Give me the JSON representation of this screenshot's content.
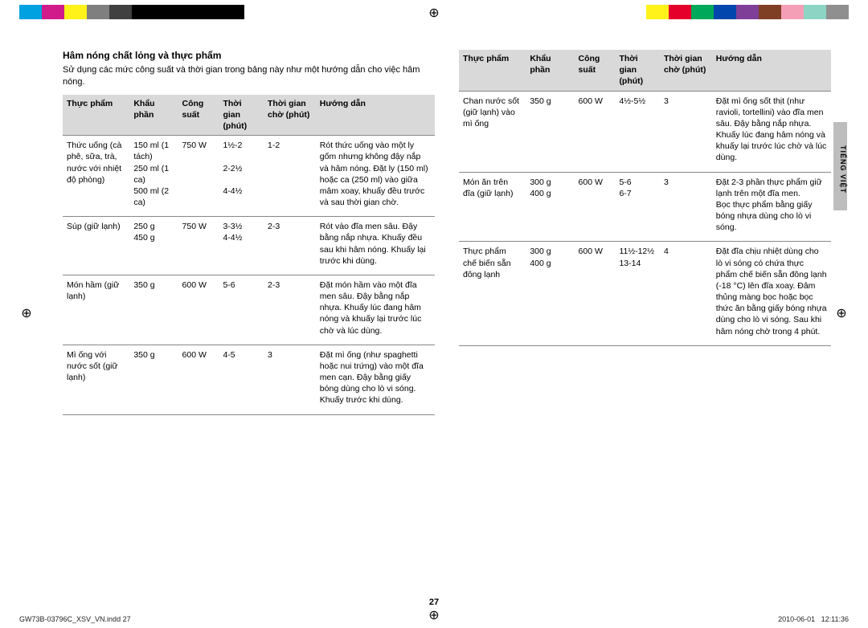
{
  "colorBar": {
    "left": [
      "#00a1e1",
      "#d11b8a",
      "#fff21a",
      "#7f7f7f",
      "#404040",
      "#000000",
      "#000000",
      "#000000",
      "#000000",
      "#000000"
    ],
    "right": [
      "#ffffff",
      "#fff21a",
      "#e4002b",
      "#00a859",
      "#0046ad",
      "#7f3f98",
      "#7f3f25",
      "#f59fb6",
      "#8ed4c5",
      "#8f8f8f"
    ]
  },
  "heading": "Hâm nóng chất lỏng và thực phẩm",
  "intro": "Sử dụng các mức công suất và thời gian trong bảng này như một hướng dẫn cho việc hâm nóng.",
  "headers": {
    "food": "Thực phẩm",
    "serving": "Khẩu phần",
    "power": "Công suất",
    "time": "Thời gian (phút)",
    "wait": "Thời gian chờ (phút)",
    "inst": "Hướng dẫn"
  },
  "tableLeft": [
    {
      "food": "Thức uống (cà phê, sữa, trà, nước với nhiệt độ phòng)",
      "serving": "150 ml (1 tách)\n250 ml (1 ca)\n500 ml (2 ca)",
      "power": "750 W",
      "time": "1½-2\n\n2-2½\n\n4-4½",
      "wait": "1-2",
      "inst": "Rót thức uống vào một ly gốm nhưng không đậy nắp và hâm nóng. Đặt ly (150 ml) hoặc ca (250 ml) vào giữa mâm xoay, khuấy đều trước và sau thời gian chờ."
    },
    {
      "food": "Súp (giữ lạnh)",
      "serving": "250 g\n450 g",
      "power": "750 W",
      "time": "3-3½\n4-4½",
      "wait": "2-3",
      "inst": "Rót vào đĩa men sâu. Đậy bằng nắp nhựa. Khuấy đều sau khi hâm nóng. Khuấy lại trước khi dùng."
    },
    {
      "food": "Món hầm (giữ lạnh)",
      "serving": "350 g",
      "power": "600 W",
      "time": "5-6",
      "wait": "2-3",
      "inst": "Đặt món hầm vào một đĩa men sâu. Đậy bằng nắp nhựa. Khuấy lúc đang hâm nóng và khuấy lại trước lúc chờ và lúc dùng."
    },
    {
      "food": "Mì ống với nước sốt (giữ lạnh)",
      "serving": "350 g",
      "power": "600 W",
      "time": "4-5",
      "wait": "3",
      "inst": "Đặt mì ống (như spaghetti hoặc nui trứng) vào một đĩa men cạn. Đậy bằng giấy bóng dùng cho lò vi sóng. Khuấy trước khi dùng."
    }
  ],
  "tableRight": [
    {
      "food": "Chan nước sốt (giữ lạnh) vào mì ống",
      "serving": "350 g",
      "power": "600 W",
      "time": "4½-5½",
      "wait": "3",
      "inst": "Đặt mì ống sốt thịt (như ravioli, tortellini) vào đĩa men sâu. Đậy bằng nắp nhựa. Khuấy lúc đang hâm nóng và khuấy lại trước lúc chờ và lúc dùng."
    },
    {
      "food": "Món ăn trên đĩa (giữ lạnh)",
      "serving": "300 g\n400 g",
      "power": "600 W",
      "time": "5-6\n6-7",
      "wait": "3",
      "inst": "Đặt 2-3 phần thực phẩm giữ lạnh trên một đĩa men.\nBọc thực phẩm bằng giấy bóng nhựa dùng cho lò vi sóng."
    },
    {
      "food": "Thực phẩm chế biến sẵn đông lạnh",
      "serving": "300 g\n400 g",
      "power": "600 W",
      "time": "11½-12½\n13-14",
      "wait": "4",
      "inst": "Đặt đĩa chịu nhiệt dùng cho lò vi sóng có chứa thực phẩm chế biến sẵn đông lạnh (-18 °C) lên đĩa xoay. Đâm thủng màng bọc hoặc bọc thức ăn bằng giấy bóng nhựa dùng cho lò vi sóng. Sau khi hâm nóng chờ trong 4 phút."
    }
  ],
  "sideTab": "TIẾNG VIỆT",
  "pageNum": "27",
  "footer": {
    "file": "GW73B-03796C_XSV_VN.indd   27",
    "date": "2010-06-01",
    "time": "12:11:36"
  }
}
